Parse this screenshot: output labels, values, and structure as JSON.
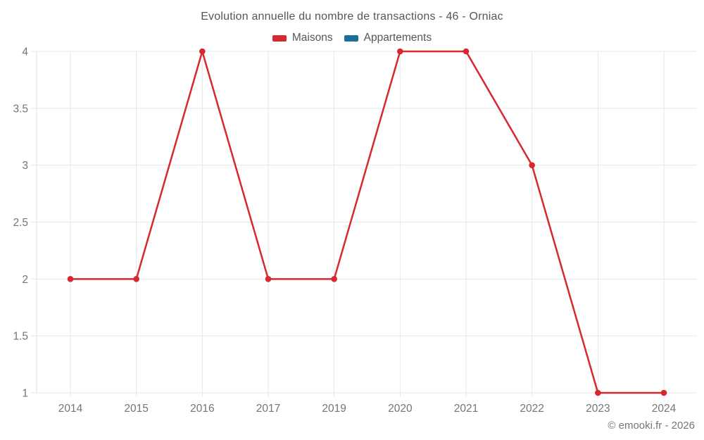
{
  "title": "Evolution annuelle du nombre de transactions - 46 - Orniac",
  "legend": {
    "items": [
      {
        "label": "Maisons",
        "color": "#d7282f"
      },
      {
        "label": "Appartements",
        "color": "#1b6d9c"
      }
    ]
  },
  "footer": {
    "copyright": "© emooki.fr - 2026"
  },
  "colors": {
    "grid": "#e7e7e7",
    "axis": "#e0e0e0",
    "tick_label": "#757575",
    "title_text": "#565656"
  },
  "chart_data": {
    "type": "line",
    "title": "Evolution annuelle du nombre de transactions - 46 - Orniac",
    "categories": [
      "2014",
      "2015",
      "2016",
      "2017",
      "2019",
      "2020",
      "2021",
      "2022",
      "2023",
      "2024"
    ],
    "series": [
      {
        "name": "Maisons",
        "color": "#d7282f",
        "values": [
          2,
          2,
          4,
          2,
          2,
          4,
          4,
          3,
          1,
          1
        ]
      },
      {
        "name": "Appartements",
        "color": "#1b6d9c",
        "values": []
      }
    ],
    "xlabel": "",
    "ylabel": "",
    "ylim": [
      1,
      4
    ],
    "y_ticks": [
      1,
      1.5,
      2,
      2.5,
      3,
      3.5,
      4
    ],
    "y_tick_labels": [
      "1",
      "1.5",
      "2",
      "2.5",
      "3",
      "3.5",
      "4"
    ],
    "grid": true,
    "legend_position": "top"
  }
}
